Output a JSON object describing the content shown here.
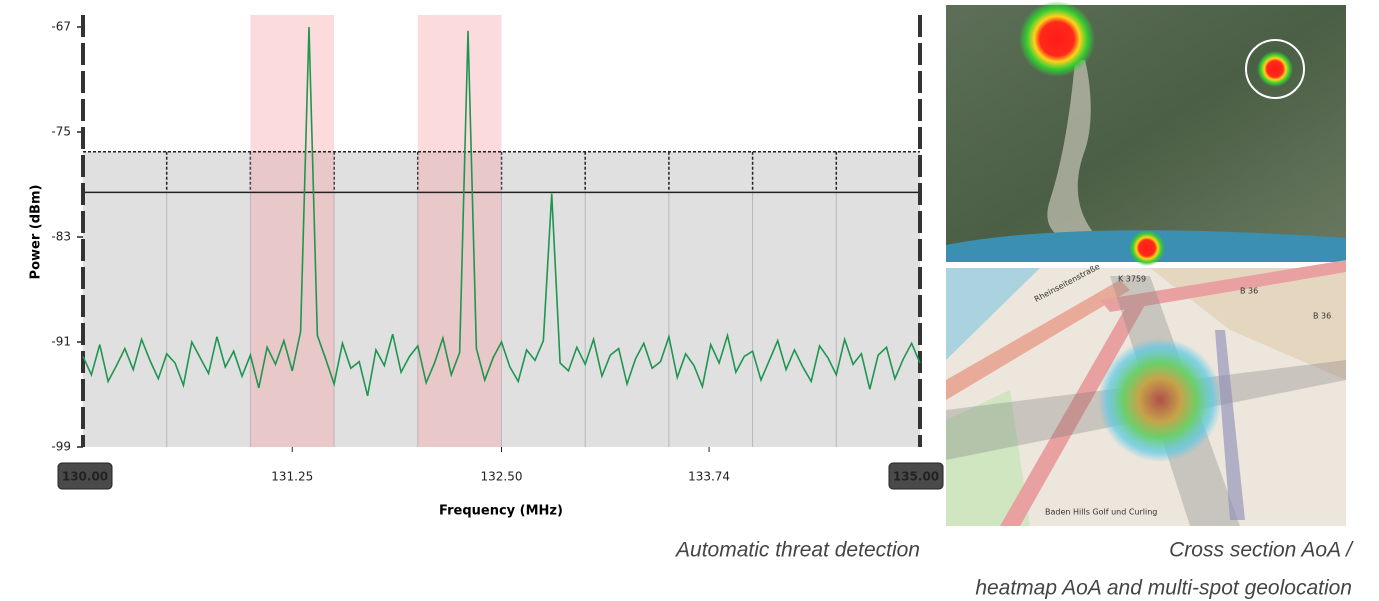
{
  "chart_data": {
    "type": "line",
    "y_label": "Power (dBm)",
    "x_label": "Frequency (MHz)",
    "color": "#1e9650",
    "ylim": [
      -99,
      -67
    ],
    "yticks": [
      -67,
      -75,
      -83,
      -91,
      -99
    ],
    "xlim": [
      130,
      135
    ],
    "xticks": [
      {
        "value": 130,
        "label": "130.00"
      },
      131.25,
      {
        "value": 132.5,
        "label": "132.50"
      },
      133.74,
      {
        "value": 135,
        "label": "135.00"
      }
    ],
    "x_gridlines": [
      130.5,
      131,
      131.5,
      132,
      132.5,
      133,
      133.5,
      134,
      134.5
    ],
    "highlight_ranges": [
      [
        131,
        131.5
      ],
      [
        132,
        132.5
      ]
    ],
    "threshold": -79.6,
    "upper_limit": -76.5,
    "x": [
      130,
      130.05,
      130.1,
      130.15,
      130.2,
      130.25,
      130.3,
      130.35,
      130.4,
      130.45,
      130.5,
      130.55,
      130.6,
      130.65,
      130.7,
      130.75,
      130.8,
      130.85,
      130.9,
      130.95,
      131,
      131.05,
      131.1,
      131.15,
      131.2,
      131.25,
      131.3,
      131.35,
      131.4,
      131.45,
      131.5,
      131.55,
      131.6,
      131.65,
      131.7,
      131.75,
      131.8,
      131.85,
      131.9,
      131.95,
      132,
      132.05,
      132.1,
      132.15,
      132.2,
      132.25,
      132.3,
      132.35,
      132.4,
      132.45,
      132.5,
      132.55,
      132.6,
      132.65,
      132.7,
      132.75,
      132.8,
      132.85,
      132.9,
      132.95,
      133,
      133.05,
      133.1,
      133.15,
      133.2,
      133.25,
      133.3,
      133.35,
      133.4,
      133.45,
      133.5,
      133.55,
      133.6,
      133.65,
      133.7,
      133.75,
      133.8,
      133.85,
      133.9,
      133.95,
      134,
      134.05,
      134.1,
      134.15,
      134.2,
      134.25,
      134.3,
      134.35,
      134.4,
      134.45,
      134.5,
      134.55,
      134.6,
      134.65,
      134.7,
      134.75,
      134.8,
      134.85,
      134.9,
      134.95,
      135
    ],
    "values": [
      -92.1,
      -93.5,
      -91.2,
      -94.0,
      -92.8,
      -91.5,
      -93.1,
      -90.8,
      -92.4,
      -93.8,
      -91.9,
      -92.6,
      -94.3,
      -91.0,
      -92.2,
      -93.4,
      -90.6,
      -92.9,
      -91.7,
      -93.6,
      -92.0,
      -94.5,
      -91.4,
      -92.7,
      -90.9,
      -93.2,
      -90.2,
      -67,
      -90.5,
      -92.3,
      -94.2,
      -91.1,
      -93.0,
      -92.5,
      -95.1,
      -91.6,
      -92.8,
      -90.4,
      -93.3,
      -92.1,
      -91.3,
      -94.1,
      -92.6,
      -90.7,
      -93.5,
      -91.8,
      -67.3,
      -91.5,
      -93.9,
      -92.2,
      -91.0,
      -92.9,
      -94.0,
      -91.6,
      -92.4,
      -90.9,
      -79.7,
      -92.6,
      -93.2,
      -91.4,
      -92.7,
      -90.8,
      -93.6,
      -92.0,
      -91.5,
      -94.2,
      -92.3,
      -91.1,
      -93.0,
      -92.5,
      -90.6,
      -93.7,
      -91.9,
      -92.8,
      -94.4,
      -91.2,
      -92.6,
      -90.5,
      -93.3,
      -92.1,
      -91.7,
      -93.9,
      -92.4,
      -90.9,
      -93.1,
      -91.6,
      -92.9,
      -94.0,
      -91.3,
      -92.2,
      -93.5,
      -90.8,
      -92.7,
      -91.9,
      -94.6,
      -92.0,
      -91.4,
      -93.8,
      -92.3,
      -91.1,
      -92.6
    ]
  },
  "map_labels": [
    "K 3759",
    "B 36",
    "B 36",
    "Rheinseitenstraße",
    "Baden Hills Golf und Curling"
  ],
  "captions": [
    "Automatic threat detection",
    "Cross section AoA /",
    "heatmap AoA and multi-spot geolocation"
  ]
}
